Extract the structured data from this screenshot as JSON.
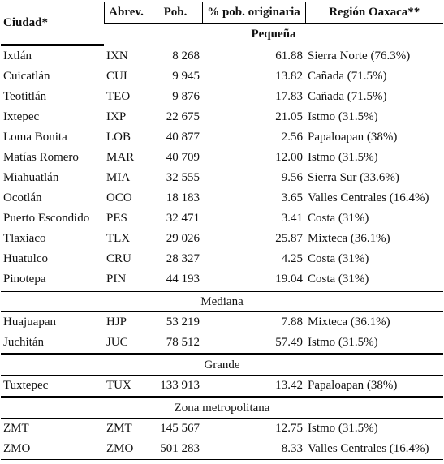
{
  "header": {
    "columns": [
      "Ciudad*",
      "Abrev.",
      "Pob.",
      "% pob. originaria",
      "Región Oaxaca**"
    ]
  },
  "groups": [
    {
      "label": "Pequeña",
      "rows": [
        [
          "Ixtlán",
          "IXN",
          "8 268",
          "61.88",
          "Sierra Norte (76.3%)"
        ],
        [
          "Cuicatlán",
          "CUI",
          "9 945",
          "13.82",
          "Cañada (71.5%)"
        ],
        [
          "Teotitlán",
          "TEO",
          "9 876",
          "17.83",
          "Cañada (71.5%)"
        ],
        [
          "Ixtepec",
          "IXP",
          "22 675",
          "21.05",
          "Istmo (31.5%)"
        ],
        [
          "Loma Bonita",
          "LOB",
          "40 877",
          "2.56",
          "Papaloapan (38%)"
        ],
        [
          "Matías Romero",
          "MAR",
          "40 709",
          "12.00",
          "Istmo (31.5%)"
        ],
        [
          "Miahuatlán",
          "MIA",
          "32 555",
          "9.56",
          "Sierra Sur (33.6%)"
        ],
        [
          "Ocotlán",
          "OCO",
          "18 183",
          "3.65",
          "Valles Centrales (16.4%)"
        ],
        [
          "Puerto Escondido",
          "PES",
          "32 471",
          "3.41",
          "Costa (31%)"
        ],
        [
          "Tlaxiaco",
          "TLX",
          "29 026",
          "25.87",
          "Mixteca (36.1%)"
        ],
        [
          "Huatulco",
          "CRU",
          "28 327",
          "4.25",
          "Costa (31%)"
        ],
        [
          "Pinotepa",
          "PIN",
          "44 193",
          "19.04",
          "Costa (31%)"
        ]
      ]
    },
    {
      "label": "Mediana",
      "rows": [
        [
          "Huajuapan",
          "HJP",
          "53 219",
          "7.88",
          "Mixteca (36.1%)"
        ],
        [
          "Juchitán",
          "JUC",
          "78 512",
          "57.49",
          "Istmo (31.5%)"
        ]
      ]
    },
    {
      "label": "Grande",
      "rows": [
        [
          "Tuxtepec",
          "TUX",
          "133 913",
          "13.42",
          "Papaloapan (38%)"
        ]
      ]
    },
    {
      "label": "Zona metropolitana",
      "rows": [
        [
          "ZMT",
          "ZMT",
          "145 567",
          "12.75",
          "Istmo (31.5%)"
        ],
        [
          "ZMO",
          "ZMO",
          "501 283",
          "8.33",
          "Valles Centrales (16.4%)"
        ]
      ]
    }
  ]
}
